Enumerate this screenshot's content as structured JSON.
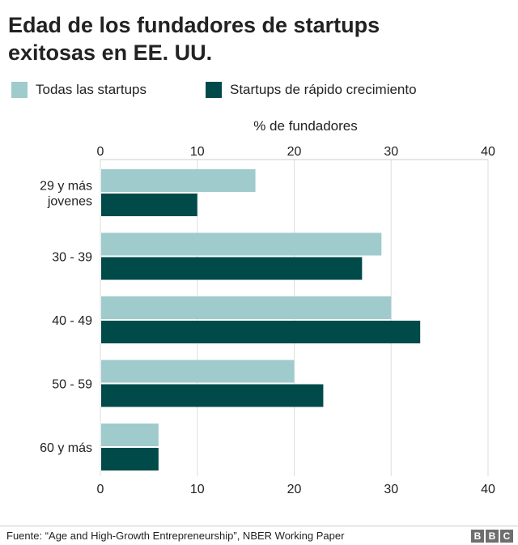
{
  "header": {
    "title_line1": "Edad de los fundadores de startups",
    "title_line2": "exitosas en EE. UU."
  },
  "footer": {
    "source": "Fuente: “Age and High-Growth Entrepreneurship”, NBER Working Paper",
    "logo_letters": [
      "B",
      "B",
      "C"
    ]
  },
  "colors": {
    "all_startups": "#9fcbcc",
    "fast_growth": "#004b4a",
    "grid": "#dddddd"
  },
  "chart_data": {
    "type": "bar",
    "orientation": "horizontal",
    "title": "Edad de los fundadores de startups exitosas en EE. UU.",
    "xlabel": "% de fundadores",
    "ylabel": "",
    "xlim": [
      0,
      40
    ],
    "ticks": [
      0,
      10,
      20,
      30,
      40
    ],
    "tick_labels": [
      "0",
      "10",
      "20",
      "30",
      "40"
    ],
    "grid": true,
    "legend_position": "top-left",
    "categories": [
      [
        "29 y más",
        "jovenes"
      ],
      [
        "30 - 39"
      ],
      [
        "40 - 49"
      ],
      [
        "50 - 59"
      ],
      [
        "60 y más"
      ]
    ],
    "series": [
      {
        "name": "Todas las startups",
        "color": "#9fcbcc",
        "values": [
          16,
          29,
          30,
          20,
          6
        ]
      },
      {
        "name": "Startups de rápido crecimiento",
        "color": "#004b4a",
        "values": [
          10,
          27,
          33,
          23,
          6
        ]
      }
    ]
  }
}
